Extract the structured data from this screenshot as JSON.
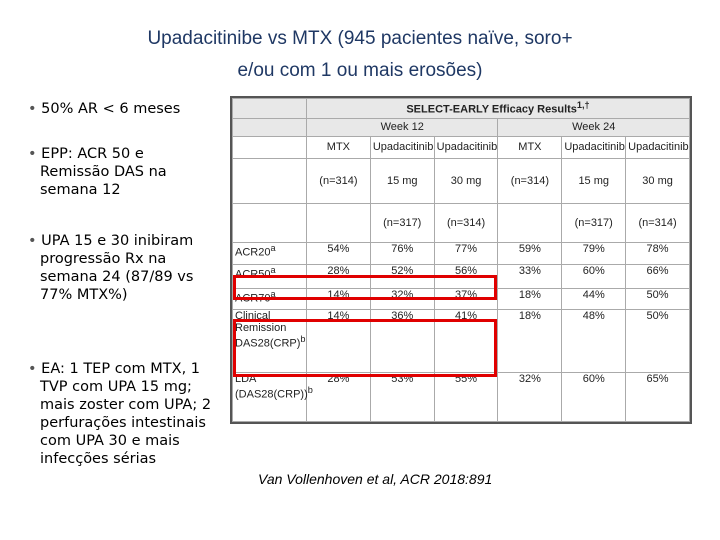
{
  "title": {
    "line1": "Upadacitinibe vs MTX (945 pacientes naïve, soro+",
    "line2": "e/ou com 1 ou mais erosões)"
  },
  "bullets": [
    "50% AR < 6 meses",
    "EPP: ACR 50 e Remissão DAS na semana 12",
    "UPA 15 e 30 inibiram progressão Rx na semana 24 (87/89 vs 77% MTX%)",
    "EA: 1 TEP com MTX, 1 TVP com UPA 15 mg; mais zoster com UPA; 2 perfurações intestinais com UPA 30 e mais infecções sérias"
  ],
  "table": {
    "caption": "SELECT-EARLY Efficacy Results",
    "caption_sup": "1,†",
    "groups": [
      "Week 12",
      "Week 24"
    ],
    "columns": [
      {
        "drug": "MTX",
        "n": "(n=314)"
      },
      {
        "drug": "Upadacitinib",
        "dose": "15 mg",
        "n": "(n=317)"
      },
      {
        "drug": "Upadacitinib",
        "dose": "30 mg",
        "n": "(n=314)"
      },
      {
        "drug": "MTX",
        "n": "(n=314)"
      },
      {
        "drug": "Upadacitinib",
        "dose": "15 mg",
        "n": "(n=317)"
      },
      {
        "drug": "Upadacitinib",
        "dose": "30 mg",
        "n": "(n=314)"
      }
    ],
    "rows": [
      {
        "label": "ACR20",
        "sup": "a",
        "values": [
          "54%",
          "76%",
          "77%",
          "59%",
          "79%",
          "78%"
        ]
      },
      {
        "label": "ACR50",
        "sup": "a",
        "values": [
          "28%",
          "52%",
          "56%",
          "33%",
          "60%",
          "66%"
        ]
      },
      {
        "label": "ACR70",
        "sup": "a",
        "values": [
          "14%",
          "32%",
          "37%",
          "18%",
          "44%",
          "50%"
        ]
      },
      {
        "label": "Clinical Remission DAS28(CRP)",
        "sup": "b",
        "values": [
          "14%",
          "36%",
          "41%",
          "18%",
          "48%",
          "50%"
        ]
      },
      {
        "label": "LDA (DAS28(CRP))",
        "sup": "b",
        "values": [
          "28%",
          "53%",
          "55%",
          "32%",
          "60%",
          "65%"
        ]
      }
    ]
  },
  "citation": "Van Vollenhoven et al, ACR 2018:891"
}
